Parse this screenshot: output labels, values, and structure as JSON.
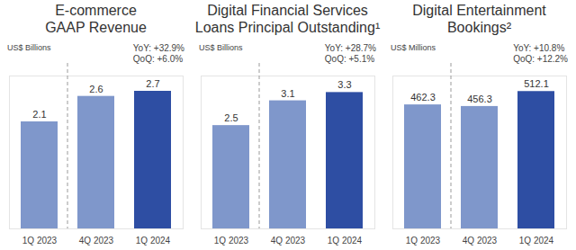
{
  "chart_data": [
    {
      "type": "bar",
      "title": [
        "E-commerce",
        "GAAP Revenue"
      ],
      "subtitle": "US$ Billions",
      "annotations": [
        "YoY: +32.9%",
        "QoQ: +6.0%"
      ],
      "categories": [
        "1Q 2023",
        "4Q 2023",
        "1Q 2024"
      ],
      "values": [
        2.1,
        2.6,
        2.7
      ],
      "colors": [
        "#7f97cb",
        "#7f97cb",
        "#2e4ea3"
      ],
      "ylim": [
        0,
        3.0
      ],
      "yticks": [],
      "grid": false,
      "data_labels": true,
      "tick_labels": "x"
    },
    {
      "type": "bar",
      "title": [
        "Digital Financial Services",
        "Loans Principal Outstanding¹"
      ],
      "subtitle": "US$ Billions",
      "annotations": [
        "YoY: +28.7%",
        "QoQ: +5.1%"
      ],
      "categories": [
        "1Q 2023",
        "4Q 2023",
        "1Q 2024"
      ],
      "values": [
        2.5,
        3.1,
        3.3
      ],
      "colors": [
        "#7f97cb",
        "#7f97cb",
        "#2e4ea3"
      ],
      "ylim": [
        0,
        3.7
      ],
      "yticks": [],
      "grid": false,
      "data_labels": true,
      "tick_labels": "x"
    },
    {
      "type": "bar",
      "title": [
        "Digital Entertainment",
        "Bookings²"
      ],
      "subtitle": "US$ Millions",
      "annotations": [
        "YoY: +10.8%",
        "QoQ: +12.2%"
      ],
      "categories": [
        "1Q 2023",
        "4Q 2023",
        "1Q 2024"
      ],
      "values": [
        462.3,
        456.3,
        512.1
      ],
      "colors": [
        "#7f97cb",
        "#7f97cb",
        "#2e4ea3"
      ],
      "ylim": [
        0,
        570
      ],
      "yticks": [],
      "grid": false,
      "data_labels": true,
      "tick_labels": "x"
    }
  ]
}
